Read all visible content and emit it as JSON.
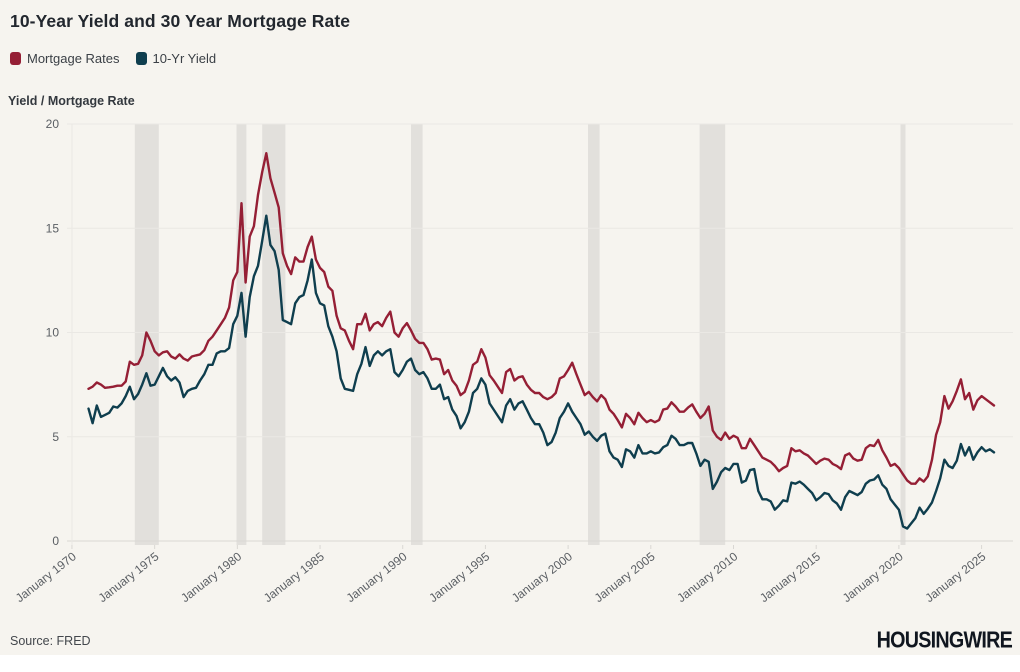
{
  "title": "10-Year Yield and 30 Year Mortgage Rate",
  "legend": [
    {
      "label": "Mortgage Rates",
      "color": "#951f35"
    },
    {
      "label": "10-Yr Yield",
      "color": "#0f3e4e"
    }
  ],
  "y_axis_title": "Yield / Mortgage Rate",
  "source": "Source: FRED",
  "brand": "HOUSINGWIRE",
  "colors": {
    "background": "#f6f4ef",
    "mortgage_red": "#951f35",
    "yield_teal": "#0f3e4e"
  },
  "chart_data": {
    "type": "line",
    "title": "10-Year Yield and 30 Year Mortgage Rate",
    "xlabel": "",
    "ylabel": "Yield / Mortgage Rate",
    "ylim": [
      0,
      20
    ],
    "yticks": [
      0,
      5,
      10,
      15,
      20
    ],
    "xlim": [
      1969.7,
      2026.9
    ],
    "xtick_years": [
      1970,
      1975,
      1980,
      1985,
      1990,
      1995,
      2000,
      2005,
      2010,
      2015,
      2020,
      2025
    ],
    "xtick_label_prefix": "January",
    "grid": "horizontal",
    "legend_position": "top-left",
    "band_color": "#e2e0dc",
    "grid_color": "#eae8e4",
    "axis_line_color": "#d9d7d3",
    "tick_color": "#5a5e63",
    "recessions": [
      [
        1973.8,
        1975.25
      ],
      [
        1979.95,
        1980.55
      ],
      [
        1981.5,
        1982.9
      ],
      [
        1990.5,
        1991.2
      ],
      [
        2001.2,
        2001.9
      ],
      [
        2007.95,
        2009.5
      ],
      [
        2020.1,
        2020.4
      ]
    ],
    "x_start": 1971.0,
    "x_step": 0.25,
    "series": [
      {
        "name": "Mortgage Rates",
        "color": "#951f35",
        "values": [
          7.3,
          7.4,
          7.6,
          7.5,
          7.35,
          7.37,
          7.4,
          7.45,
          7.45,
          7.65,
          8.6,
          8.45,
          8.5,
          8.9,
          10.0,
          9.6,
          9.1,
          8.9,
          9.05,
          9.1,
          8.85,
          8.75,
          8.95,
          8.75,
          8.65,
          8.85,
          8.9,
          8.95,
          9.15,
          9.6,
          9.8,
          10.1,
          10.4,
          10.7,
          11.2,
          12.5,
          12.9,
          16.2,
          12.4,
          14.6,
          15.1,
          16.6,
          17.7,
          18.6,
          17.4,
          16.7,
          16.0,
          13.8,
          13.2,
          12.8,
          13.6,
          13.4,
          13.4,
          14.1,
          14.6,
          13.5,
          13.1,
          12.9,
          12.2,
          12.0,
          10.8,
          10.2,
          10.1,
          9.6,
          9.2,
          10.4,
          10.4,
          10.9,
          10.1,
          10.4,
          10.5,
          10.3,
          10.7,
          11.0,
          10.0,
          9.8,
          10.2,
          10.45,
          10.1,
          9.7,
          9.5,
          9.5,
          9.2,
          8.7,
          8.75,
          8.7,
          8.0,
          8.2,
          7.7,
          7.45,
          7.0,
          7.15,
          7.7,
          8.45,
          8.6,
          9.2,
          8.8,
          7.95,
          7.7,
          7.4,
          7.1,
          8.1,
          8.25,
          7.7,
          7.85,
          7.9,
          7.5,
          7.25,
          7.1,
          7.1,
          6.9,
          6.8,
          6.9,
          7.1,
          7.8,
          7.9,
          8.2,
          8.55,
          8.0,
          7.5,
          7.0,
          7.15,
          6.9,
          6.7,
          7.0,
          6.8,
          6.3,
          6.1,
          5.8,
          5.45,
          6.1,
          5.9,
          5.6,
          6.15,
          5.9,
          5.7,
          5.8,
          5.7,
          5.8,
          6.3,
          6.35,
          6.65,
          6.45,
          6.2,
          6.2,
          6.4,
          6.55,
          6.2,
          5.9,
          6.1,
          6.45,
          5.3,
          5.0,
          4.85,
          5.2,
          4.9,
          5.05,
          4.95,
          4.45,
          4.45,
          4.9,
          4.6,
          4.3,
          4.0,
          3.9,
          3.8,
          3.6,
          3.35,
          3.5,
          3.6,
          4.45,
          4.3,
          4.35,
          4.2,
          4.1,
          3.9,
          3.7,
          3.85,
          3.95,
          3.9,
          3.7,
          3.6,
          3.45,
          4.1,
          4.2,
          3.95,
          3.85,
          3.9,
          4.45,
          4.6,
          4.55,
          4.85,
          4.35,
          4.0,
          3.6,
          3.7,
          3.5,
          3.2,
          2.9,
          2.75,
          2.75,
          3.0,
          2.85,
          3.1,
          3.9,
          5.1,
          5.7,
          6.95,
          6.35,
          6.7,
          7.2,
          7.75,
          6.8,
          7.1,
          6.3,
          6.75,
          6.95,
          6.8,
          6.65,
          6.5
        ]
      },
      {
        "name": "10-Yr Yield",
        "color": "#0f3e4e",
        "values": [
          6.35,
          5.65,
          6.5,
          5.95,
          6.05,
          6.15,
          6.45,
          6.4,
          6.6,
          6.95,
          7.4,
          6.8,
          7.05,
          7.5,
          8.05,
          7.45,
          7.5,
          7.9,
          8.3,
          7.9,
          7.7,
          7.85,
          7.6,
          6.9,
          7.2,
          7.3,
          7.35,
          7.7,
          8.0,
          8.45,
          8.45,
          9.0,
          9.1,
          9.1,
          9.25,
          10.4,
          10.8,
          11.9,
          9.8,
          11.7,
          12.7,
          13.2,
          14.4,
          15.6,
          14.2,
          13.9,
          13.0,
          10.6,
          10.5,
          10.4,
          11.4,
          11.7,
          11.8,
          12.5,
          13.5,
          11.9,
          11.4,
          11.3,
          10.3,
          9.8,
          9.1,
          7.8,
          7.3,
          7.25,
          7.2,
          8.0,
          8.5,
          9.3,
          8.4,
          8.9,
          9.1,
          8.9,
          9.1,
          9.2,
          8.1,
          7.9,
          8.2,
          8.6,
          8.75,
          8.2,
          8.0,
          8.1,
          7.8,
          7.3,
          7.3,
          7.5,
          6.8,
          6.9,
          6.3,
          6.0,
          5.4,
          5.7,
          6.2,
          7.1,
          7.3,
          7.8,
          7.5,
          6.6,
          6.3,
          6.0,
          5.7,
          6.5,
          6.8,
          6.3,
          6.6,
          6.7,
          6.3,
          5.9,
          5.6,
          5.6,
          5.2,
          4.6,
          4.75,
          5.2,
          5.9,
          6.2,
          6.6,
          6.2,
          5.9,
          5.6,
          5.1,
          5.25,
          5.0,
          4.8,
          5.05,
          5.15,
          4.3,
          4.0,
          3.9,
          3.55,
          4.4,
          4.3,
          4.0,
          4.6,
          4.2,
          4.2,
          4.3,
          4.2,
          4.25,
          4.5,
          4.6,
          5.05,
          4.9,
          4.6,
          4.6,
          4.7,
          4.7,
          4.2,
          3.6,
          3.9,
          3.8,
          2.5,
          2.85,
          3.3,
          3.5,
          3.4,
          3.7,
          3.7,
          2.8,
          2.9,
          3.4,
          3.45,
          2.4,
          2.0,
          2.0,
          1.9,
          1.5,
          1.7,
          1.95,
          1.9,
          2.8,
          2.75,
          2.85,
          2.7,
          2.5,
          2.3,
          1.95,
          2.1,
          2.3,
          2.25,
          1.95,
          1.8,
          1.5,
          2.1,
          2.4,
          2.3,
          2.2,
          2.35,
          2.75,
          2.9,
          2.95,
          3.15,
          2.7,
          2.5,
          2.0,
          1.75,
          1.5,
          0.7,
          0.6,
          0.85,
          1.1,
          1.6,
          1.3,
          1.55,
          1.85,
          2.4,
          3.0,
          3.9,
          3.6,
          3.5,
          3.85,
          4.65,
          4.1,
          4.5,
          3.9,
          4.25,
          4.5,
          4.3,
          4.4,
          4.25
        ]
      }
    ]
  }
}
